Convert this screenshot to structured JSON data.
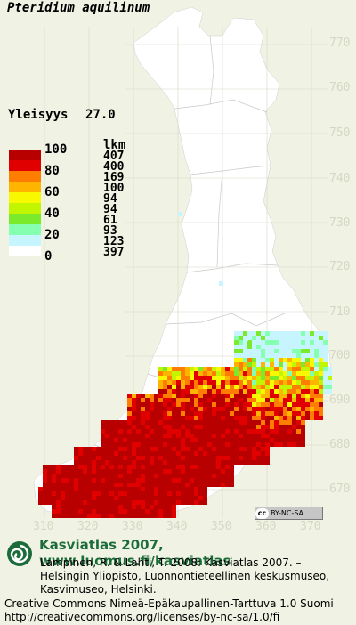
{
  "species": "Pteridium aquilinum",
  "frequency": {
    "label": "Yleisyys",
    "value": "27.0"
  },
  "legend": {
    "count_header": "lkm",
    "percent_labels": [
      "100",
      "80",
      "60",
      "40",
      "20",
      "0"
    ],
    "classes": [
      {
        "color": "#b80000",
        "count": "407"
      },
      {
        "color": "#e00000",
        "count": "400"
      },
      {
        "color": "#ff7d00",
        "count": "169"
      },
      {
        "color": "#ffb400",
        "count": "100"
      },
      {
        "color": "#f8f800",
        "count": "94"
      },
      {
        "color": "#c2f500",
        "count": "94"
      },
      {
        "color": "#7bea2a",
        "count": "61"
      },
      {
        "color": "#85ffb0",
        "count": "93"
      },
      {
        "color": "#c7f5ff",
        "count": "123"
      },
      {
        "color": "#ffffff",
        "count": "397"
      }
    ]
  },
  "grid_labels": {
    "northing": [
      "770",
      "760",
      "750",
      "740",
      "730",
      "720",
      "710",
      "700",
      "690",
      "680",
      "670"
    ],
    "easting": [
      "310",
      "320",
      "330",
      "340",
      "350",
      "360",
      "370"
    ]
  },
  "license_badge": {
    "icon": "cc-icon",
    "text": "BY-NC-SA"
  },
  "credits": {
    "logo_icon": "kasviatlas-spiral-logo",
    "brand": "Kasviatlas 2007, www.luomus.fi/kasviatlas",
    "citation": [
      "Lampinen, R. & Lahti, T. 2008: Kasviatlas 2007. –",
      "Helsingin Yliopisto, Luonnontieteellinen keskusmuseo,",
      "Kasvimuseo, Helsinki."
    ],
    "license": [
      "Creative Commons Nimeä-Epäkaupallinen-Tarttuva 1.0 Suomi",
      "http://creativecommons.org/licenses/by-nc-sa/1.0/fi"
    ]
  },
  "colors": {
    "background": "#f0f3e3",
    "land": "#ffffff",
    "brand": "#1c6b3a",
    "grid": "#d6d6c4"
  }
}
